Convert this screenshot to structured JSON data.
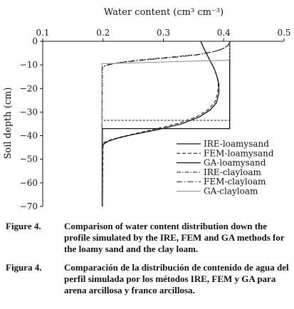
{
  "chart_data": {
    "type": "line",
    "title": "",
    "xlabel": "Water content (cm³ cm⁻³)",
    "ylabel": "Soil depth (cm)",
    "xlim": [
      0.1,
      0.5
    ],
    "ylim": [
      -70,
      0
    ],
    "xticks": [
      "0.1",
      "0.2",
      "0.3",
      "0.4",
      "0.5"
    ],
    "yticks": [
      "0",
      "−10",
      "−20",
      "−30",
      "−40",
      "−50",
      "−60",
      "−70"
    ],
    "x_axis_position": "top",
    "grid": false,
    "legend_position": "bottom-right",
    "series": [
      {
        "name": "IRE-loamysand",
        "style": "solid",
        "x": [
          0.362,
          0.367,
          0.373,
          0.379,
          0.385,
          0.389,
          0.392,
          0.392,
          0.388,
          0.378,
          0.36,
          0.33,
          0.29,
          0.25,
          0.225,
          0.21,
          0.203,
          0.2,
          0.199,
          0.199
        ],
        "y": [
          0,
          -3,
          -6,
          -9,
          -12,
          -15,
          -18,
          -22,
          -26,
          -29,
          -32,
          -35,
          -37.5,
          -39.5,
          -41,
          -42.2,
          -43.2,
          -44,
          -45,
          -70
        ]
      },
      {
        "name": "FEM-loamysand",
        "style": "dashed",
        "x": [
          0.362,
          0.367,
          0.373,
          0.379,
          0.385,
          0.389,
          0.391,
          0.39,
          0.385,
          0.374,
          0.355,
          0.325,
          0.29,
          0.255,
          0.23,
          0.213,
          0.204,
          0.2,
          0.199
        ],
        "y": [
          0,
          -3,
          -6,
          -9,
          -12,
          -15,
          -18,
          -22,
          -26,
          -29,
          -32,
          -34.7,
          -37,
          -39,
          -40.5,
          -41.7,
          -42.6,
          -43.3,
          -70
        ]
      },
      {
        "name": "GA-loamysand",
        "style": "solid",
        "x": [
          0.41,
          0.41,
          0.199,
          0.199
        ],
        "y": [
          0,
          -37,
          -37,
          -70
        ]
      },
      {
        "name": "IRE-clayloam",
        "style": "dashdot",
        "x": [
          0.41,
          0.408,
          0.4,
          0.385,
          0.36,
          0.33,
          0.3,
          0.27,
          0.245,
          0.225,
          0.21,
          0.203,
          0.199,
          0.198
        ],
        "y": [
          -0.5,
          -1.5,
          -3,
          -4.3,
          -5.5,
          -6.3,
          -7,
          -7.7,
          -8.4,
          -9.1,
          -9.8,
          -10.4,
          -11,
          -70
        ]
      },
      {
        "name": "FEM-clayloam",
        "style": "dashdot-sparse",
        "x": [
          0.41,
          0.407,
          0.398,
          0.38,
          0.355,
          0.325,
          0.295,
          0.265,
          0.24,
          0.22,
          0.207,
          0.201,
          0.198,
          0.198
        ],
        "y": [
          -0.5,
          -1.8,
          -3.3,
          -4.6,
          -5.8,
          -6.6,
          -7.3,
          -8,
          -8.7,
          -9.4,
          -10.1,
          -10.7,
          -11.3,
          -70
        ]
      },
      {
        "name": "GA-clayloam",
        "style": "solid-gray",
        "x": [
          0.41,
          0.41,
          0.198,
          0.198
        ],
        "y": [
          0,
          -8,
          -9.5,
          -70
        ]
      },
      {
        "name": "",
        "style": "dashed-vertical",
        "x": [
          0.41,
          0.41,
          0.2
        ],
        "y": [
          0,
          -33.5,
          -33.5
        ]
      }
    ]
  },
  "caption": {
    "en_label": "Figure 4.",
    "en_text": "Comparison of water content distribution down the profile simulated by the IRE, FEM and GA methods for the loamy sand and the clay loam.",
    "es_label": "Figura 4.",
    "es_text": "Comparación de la distribución de contenido de agua del perfil simulada por los métodos IRE, FEM y GA para arena arcillosa y franco arcillosa."
  }
}
